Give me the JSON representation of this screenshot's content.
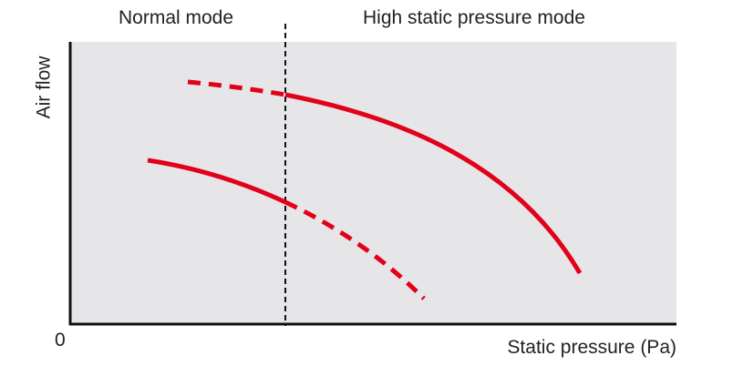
{
  "modes": {
    "normal": "Normal mode",
    "high": "High static pressure mode"
  },
  "axes": {
    "y_label": "Air flow",
    "x_label": "Static pressure (Pa)",
    "origin": "0"
  },
  "colors": {
    "curve": "#e3001b",
    "plot_bg": "#e6e6e8",
    "axis": "#111111"
  },
  "curves": [
    {
      "name": "high static pressure mode curve",
      "dashed_part": "normal region",
      "solid_part": "high region"
    },
    {
      "name": "normal mode curve",
      "solid_part": "normal region",
      "dashed_part": "high region"
    }
  ]
}
